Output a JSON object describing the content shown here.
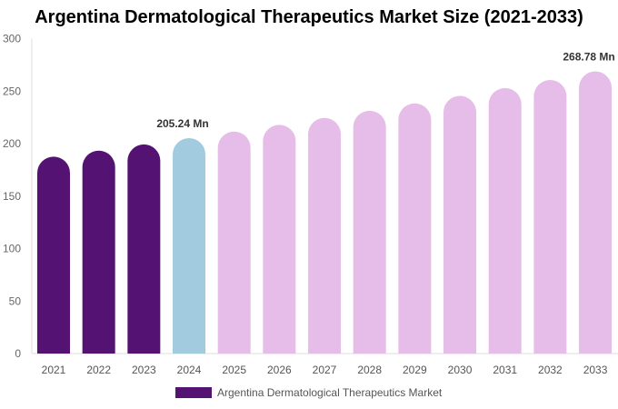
{
  "chart_data": {
    "type": "bar",
    "title": "Argentina Dermatological Therapeutics Market Size (2021-2033)",
    "categories": [
      "2021",
      "2022",
      "2023",
      "2024",
      "2025",
      "2026",
      "2027",
      "2028",
      "2029",
      "2030",
      "2031",
      "2032",
      "2033"
    ],
    "series": [
      {
        "name": "Argentina Dermatological Therapeutics Market",
        "values": [
          187.6,
          193.3,
          199.2,
          205.24,
          211.5,
          217.9,
          224.5,
          231.3,
          238.3,
          245.5,
          252.9,
          260.6,
          268.78
        ]
      }
    ],
    "data_labels": {
      "2024": "205.24 Mn",
      "2033": "268.78 Mn"
    },
    "ylim": [
      0,
      300
    ],
    "yticks": [
      0,
      50,
      100,
      150,
      200,
      250,
      300
    ],
    "grid": false,
    "legend": "bottom",
    "colors": {
      "historical": "#541272",
      "base_year": "#a3cbdf",
      "forecast": "#e6bde8"
    }
  }
}
